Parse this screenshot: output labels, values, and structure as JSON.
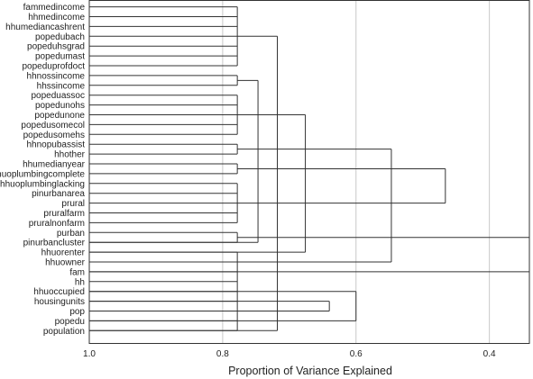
{
  "chart_data": {
    "type": "dendrogram",
    "xlabel": "Proportion of Variance Explained",
    "xlim": [
      1.0,
      0.34
    ],
    "x_ticks": [
      1.0,
      0.8,
      0.6,
      0.4
    ],
    "x_tick_labels": [
      "1.0",
      "0.8",
      "0.6",
      "0.4"
    ],
    "grid": true,
    "leaves": [
      "fammedincome",
      "hhmedincome",
      "hhumediancashrent",
      "popedubach",
      "popeduhsgrad",
      "popedumast",
      "popeduprofdoct",
      "hhnossincome",
      "hhssincome",
      "popeduassoc",
      "popedunohs",
      "popedunone",
      "popedusomecol",
      "popedusomehs",
      "hhnopubassist",
      "hhother",
      "hhumedianyear",
      "hhuoplumbingcomplete",
      "hhuoplumbinglacking",
      "pinurbanarea",
      "prural",
      "pruralfarm",
      "pruralnonfarm",
      "purban",
      "pinurbancluster",
      "hhuorenter",
      "hhuowner",
      "fam",
      "hh",
      "hhuoccupied",
      "housingunits",
      "pop",
      "popedu",
      "population"
    ],
    "merges": [
      {
        "members": [
          0,
          1,
          2,
          3,
          4,
          5,
          6
        ],
        "height": 0.778
      },
      {
        "members": [
          7,
          8
        ],
        "height": 0.778
      },
      {
        "members": [
          9,
          10,
          11,
          12,
          13
        ],
        "height": 0.778
      },
      {
        "members": [
          14,
          15
        ],
        "height": 0.778
      },
      {
        "members": [
          16,
          17
        ],
        "height": 0.778
      },
      {
        "members": [
          18,
          19,
          20,
          21,
          22
        ],
        "height": 0.778
      },
      {
        "members": [
          23,
          24
        ],
        "height": 0.778
      },
      {
        "members": [
          25,
          26,
          27,
          28,
          29,
          30,
          31,
          32,
          33
        ],
        "height": 0.778
      },
      {
        "members": [
          30,
          31
        ],
        "height": 0.64
      },
      {
        "members": [
          32,
          29
        ],
        "height": 0.6
      },
      {
        "members": [
          33,
          34
        ],
        "height": 0.718
      },
      {
        "members": [
          35,
          24
        ],
        "height": 0.747
      },
      {
        "members": [
          36,
          25
        ],
        "height": 0.676
      },
      {
        "members": [
          37,
          26
        ],
        "height": 0.547
      },
      {
        "members": [
          38,
          39
        ],
        "height": 0.466
      },
      {
        "members": [
          40,
          27
        ],
        "height": 0.34
      }
    ]
  }
}
